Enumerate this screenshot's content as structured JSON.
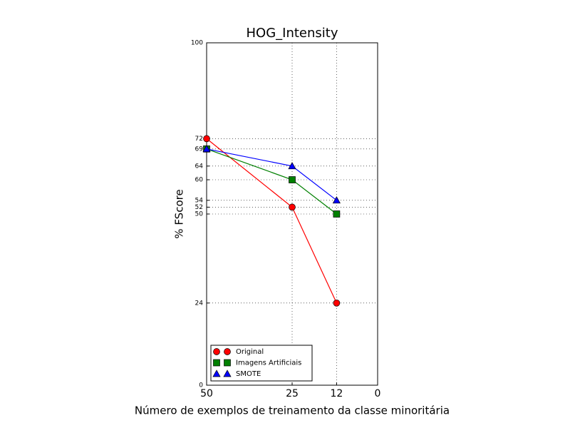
{
  "chart_data": {
    "type": "line",
    "title": "HOG_Intensity",
    "x_label": "Número de exemplos de treinamento da classe minoritária",
    "y_label": "% FScore",
    "x": [
      50,
      25,
      12
    ],
    "series": [
      {
        "name": "Original",
        "color": "#ff0000",
        "marker": "circle",
        "values": [
          72,
          52,
          24
        ]
      },
      {
        "name": "Imagens Artificiais",
        "color": "#008000",
        "marker": "square",
        "values": [
          69,
          60,
          50
        ]
      },
      {
        "name": "SMOTE",
        "color": "#0000ff",
        "marker": "triangle",
        "values": [
          69,
          64,
          54
        ]
      }
    ],
    "xlim": [
      50,
      0
    ],
    "xticks": [
      50,
      25,
      12,
      0
    ],
    "ylim": [
      0,
      100
    ],
    "yticks": [
      0,
      24,
      50,
      52,
      54,
      60,
      64,
      69,
      72,
      100
    ],
    "grid": true,
    "legend": "lower left"
  }
}
